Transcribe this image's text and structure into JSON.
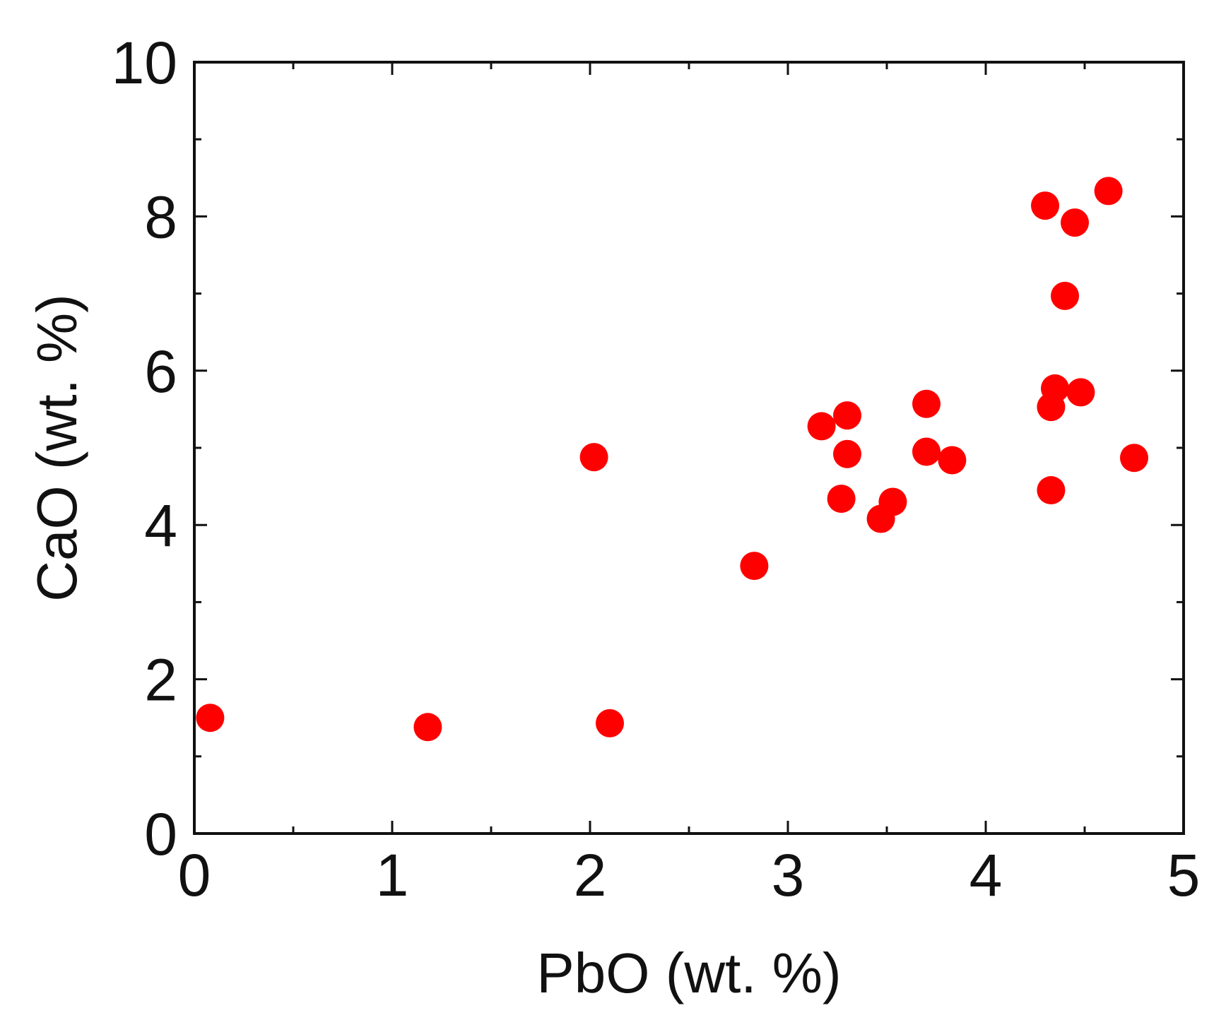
{
  "chart_data": {
    "type": "scatter",
    "title": "",
    "xlabel": "PbO (wt. %)",
    "ylabel": "CaO (wt. %)",
    "xlim": [
      0,
      5
    ],
    "ylim": [
      0,
      10
    ],
    "x_ticks": [
      0,
      1,
      2,
      3,
      4,
      5
    ],
    "x_tick_labels": [
      "0",
      "1",
      "2",
      "3",
      "4",
      "5"
    ],
    "y_ticks": [
      0,
      2,
      4,
      6,
      8,
      10
    ],
    "y_tick_labels": [
      "0",
      "2",
      "4",
      "6",
      "8",
      "10"
    ],
    "x_minor_step": 0.5,
    "y_minor_step": 1,
    "grid": false,
    "legend": "none",
    "marker_color": "#ff0000",
    "series": [
      {
        "points": [
          {
            "x": 0.08,
            "y": 1.5
          },
          {
            "x": 1.18,
            "y": 1.38
          },
          {
            "x": 2.02,
            "y": 4.88
          },
          {
            "x": 2.1,
            "y": 1.43
          },
          {
            "x": 2.83,
            "y": 3.47
          },
          {
            "x": 3.17,
            "y": 5.28
          },
          {
            "x": 3.27,
            "y": 4.34
          },
          {
            "x": 3.3,
            "y": 5.42
          },
          {
            "x": 3.3,
            "y": 4.92
          },
          {
            "x": 3.47,
            "y": 4.08
          },
          {
            "x": 3.53,
            "y": 4.3
          },
          {
            "x": 3.7,
            "y": 5.57
          },
          {
            "x": 3.7,
            "y": 4.95
          },
          {
            "x": 3.83,
            "y": 4.84
          },
          {
            "x": 4.3,
            "y": 8.14
          },
          {
            "x": 4.33,
            "y": 4.45
          },
          {
            "x": 4.33,
            "y": 5.53
          },
          {
            "x": 4.35,
            "y": 5.77
          },
          {
            "x": 4.4,
            "y": 6.97
          },
          {
            "x": 4.45,
            "y": 7.92
          },
          {
            "x": 4.48,
            "y": 5.72
          },
          {
            "x": 4.62,
            "y": 8.33
          },
          {
            "x": 4.75,
            "y": 4.87
          }
        ]
      }
    ]
  }
}
